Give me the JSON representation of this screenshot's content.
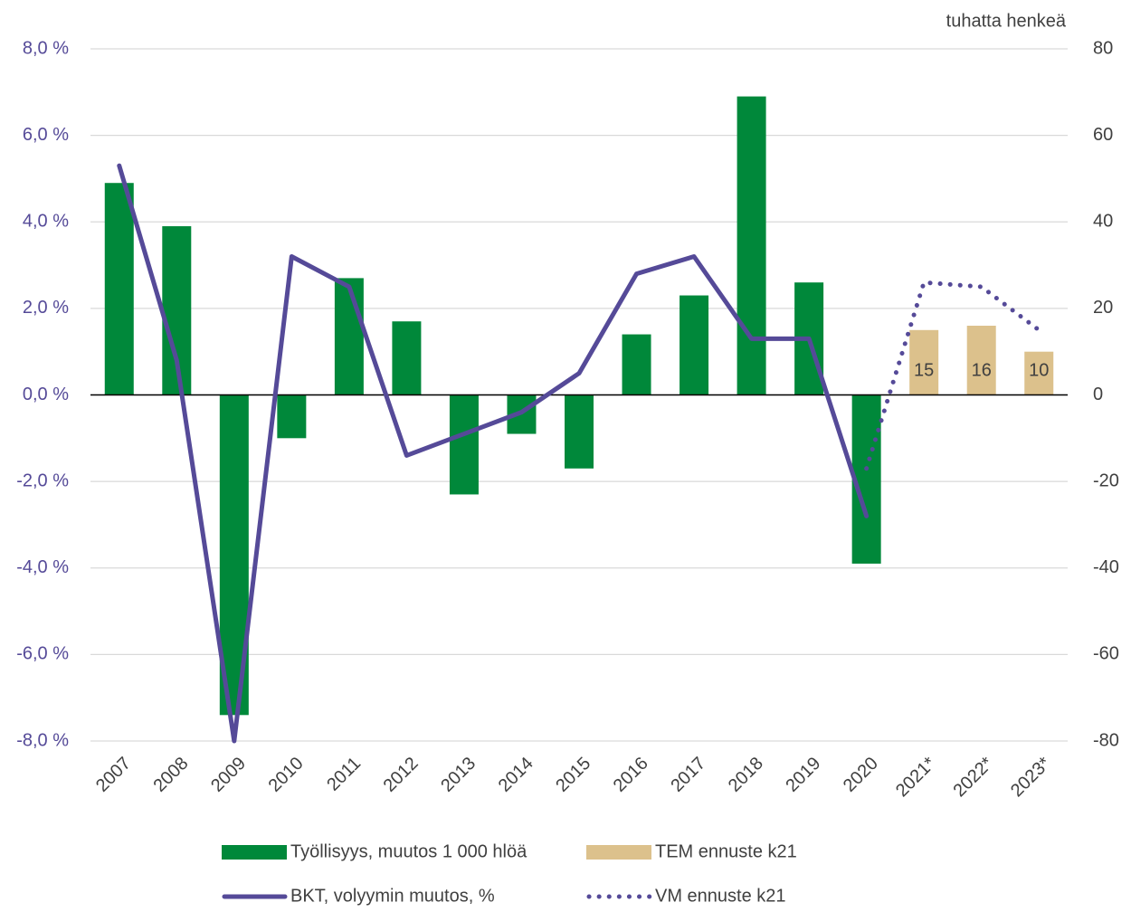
{
  "chart_data": {
    "type": "bar-line",
    "y2_label": "tuhatta henkeä",
    "categories": [
      "2007",
      "2008",
      "2009",
      "2010",
      "2011",
      "2012",
      "2013",
      "2014",
      "2015",
      "2016",
      "2017",
      "2018",
      "2019",
      "2020",
      "2021*",
      "2022*",
      "2023*"
    ],
    "series": [
      {
        "name": "Työllisyys, muutos 1 000 hlöä",
        "kind": "bar",
        "axis": "y2",
        "color": "#00883a",
        "values": [
          49,
          39,
          -74,
          -10,
          27,
          17,
          -23,
          -9,
          -17,
          14,
          23,
          69,
          26,
          -39,
          null,
          null,
          null
        ]
      },
      {
        "name": "TEM ennuste k21",
        "kind": "bar",
        "axis": "y2",
        "color": "#dcc18c",
        "values": [
          null,
          null,
          null,
          null,
          null,
          null,
          null,
          null,
          null,
          null,
          null,
          null,
          null,
          null,
          15,
          16,
          10
        ]
      },
      {
        "name": "BKT, volyymin muutos, %",
        "kind": "line",
        "style": "solid",
        "color": "#554a98",
        "values": [
          5.3,
          0.8,
          -8.0,
          3.2,
          2.5,
          -1.4,
          -0.9,
          -0.4,
          0.5,
          2.8,
          3.2,
          1.3,
          1.3,
          -2.8,
          null,
          null,
          null
        ]
      },
      {
        "name": "VM ennuste k21",
        "kind": "line",
        "style": "dotted",
        "color": "#554a98",
        "values": [
          null,
          null,
          null,
          null,
          null,
          null,
          null,
          null,
          null,
          null,
          null,
          null,
          null,
          -1.7,
          2.6,
          2.5,
          1.5
        ]
      }
    ],
    "ylim": [
      -8,
      8
    ],
    "yticks": [
      {
        "value": -8,
        "label": "-8,0 %"
      },
      {
        "value": -6,
        "label": "-6,0 %"
      },
      {
        "value": -4,
        "label": "-4,0 %"
      },
      {
        "value": -2,
        "label": "-2,0 %"
      },
      {
        "value": 0,
        "label": "0,0 %"
      },
      {
        "value": 2,
        "label": "2,0 %"
      },
      {
        "value": 4,
        "label": "4,0 %"
      },
      {
        "value": 6,
        "label": "6,0 %"
      },
      {
        "value": 8,
        "label": "8,0 %"
      }
    ],
    "y2lim": [
      -80,
      80
    ],
    "y2ticks": [
      -80,
      -60,
      -40,
      -20,
      0,
      20,
      40,
      60,
      80
    ],
    "grid": true
  }
}
